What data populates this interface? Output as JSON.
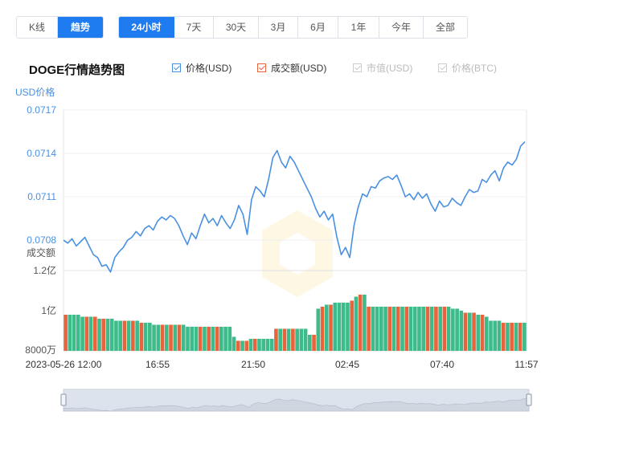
{
  "mode_tabs": [
    {
      "label": "K线",
      "active": false
    },
    {
      "label": "趋势",
      "active": true
    }
  ],
  "range_tabs": [
    {
      "label": "24小时",
      "active": true
    },
    {
      "label": "7天",
      "active": false
    },
    {
      "label": "30天",
      "active": false
    },
    {
      "label": "3月",
      "active": false
    },
    {
      "label": "6月",
      "active": false
    },
    {
      "label": "1年",
      "active": false
    },
    {
      "label": "今年",
      "active": false
    },
    {
      "label": "全部",
      "active": false
    }
  ],
  "title": "DOGE行情趋势图",
  "legend": [
    {
      "label": "价格(USD)",
      "checked": true,
      "color": "#4a90e2"
    },
    {
      "label": "成交额(USD)",
      "checked": true,
      "color": "#e8643c"
    },
    {
      "label": "市值(USD)",
      "checked": false,
      "color": "#cccccc"
    },
    {
      "label": "价格(BTC)",
      "checked": false,
      "color": "#cccccc"
    }
  ],
  "colors": {
    "accent": "#1e7bf0",
    "price_line": "#4a90e2",
    "vol_up": "#3dbb8a",
    "vol_down": "#e8643c",
    "axis_text": "#4a90e2"
  },
  "chart_data": {
    "type": "line",
    "price_axis_label": "USD价格",
    "volume_axis_label": "成交额",
    "price_ticks": [
      "0.0717",
      "0.0714",
      "0.0711",
      "0.0708"
    ],
    "price_range": [
      0.07059,
      0.0717
    ],
    "volume_ticks": [
      "1.2亿",
      "1亿",
      "8000万"
    ],
    "volume_range": [
      80000000,
      120000000
    ],
    "x_ticks": [
      "2023-05-26 12:00",
      "16:55",
      "21:50",
      "02:45",
      "07:40",
      "11:57"
    ],
    "price_series": [
      0.0708,
      0.07078,
      0.07081,
      0.07076,
      0.07079,
      0.07082,
      0.07076,
      0.0707,
      0.07068,
      0.07062,
      0.07063,
      0.07058,
      0.07068,
      0.07072,
      0.07075,
      0.0708,
      0.07082,
      0.07086,
      0.07083,
      0.07088,
      0.0709,
      0.07087,
      0.07093,
      0.07096,
      0.07094,
      0.07097,
      0.07095,
      0.0709,
      0.07083,
      0.07077,
      0.07085,
      0.07081,
      0.0709,
      0.07098,
      0.07092,
      0.07095,
      0.0709,
      0.07097,
      0.07092,
      0.07088,
      0.07094,
      0.07104,
      0.07098,
      0.07084,
      0.07108,
      0.07117,
      0.07114,
      0.0711,
      0.07122,
      0.07137,
      0.07142,
      0.07134,
      0.0713,
      0.07138,
      0.07134,
      0.07128,
      0.07122,
      0.07116,
      0.0711,
      0.07102,
      0.07096,
      0.071,
      0.07094,
      0.07098,
      0.07082,
      0.0707,
      0.07075,
      0.07068,
      0.0709,
      0.07103,
      0.07112,
      0.0711,
      0.07117,
      0.07116,
      0.07121,
      0.07123,
      0.07124,
      0.07122,
      0.07125,
      0.07118,
      0.0711,
      0.07112,
      0.07108,
      0.07113,
      0.07109,
      0.07112,
      0.07105,
      0.071,
      0.07107,
      0.07103,
      0.07104,
      0.07109,
      0.07106,
      0.07104,
      0.0711,
      0.07115,
      0.07113,
      0.07114,
      0.07122,
      0.0712,
      0.07125,
      0.07128,
      0.07121,
      0.0713,
      0.07134,
      0.07132,
      0.07136,
      0.07145,
      0.07148
    ],
    "volume_series": [
      98,
      98,
      98,
      98,
      97,
      97,
      97,
      97,
      96,
      96,
      96,
      96,
      95,
      95,
      95,
      95,
      95,
      95,
      94,
      94,
      94,
      93,
      93,
      93,
      93,
      93,
      93,
      93,
      93,
      92,
      92,
      92,
      92,
      92,
      92,
      92,
      92,
      92,
      92,
      92,
      87,
      85,
      85,
      85,
      86,
      86,
      86,
      86,
      86,
      86,
      91,
      91,
      91,
      91,
      91,
      91,
      91,
      91,
      88,
      88,
      101,
      102,
      103,
      103,
      104,
      104,
      104,
      104,
      105,
      107,
      108,
      108,
      102,
      102,
      102,
      102,
      102,
      102,
      102,
      102,
      102,
      102,
      102,
      102,
      102,
      102,
      102,
      102,
      102,
      102,
      102,
      102,
      101,
      101,
      100,
      99,
      99,
      99,
      98,
      98,
      97,
      95,
      95,
      95,
      94,
      94,
      94,
      94,
      94,
      94
    ],
    "volume_colors": "mixed"
  }
}
